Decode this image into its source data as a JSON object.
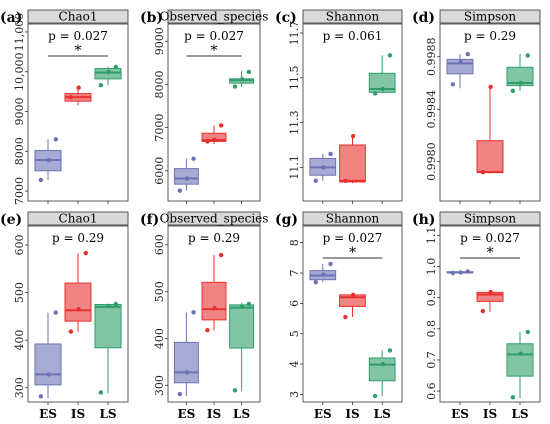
{
  "chart_data": [
    {
      "type": "box",
      "panel": "(a)",
      "strip": "Chao1",
      "p": "p = 0.027",
      "sig": "*",
      "sig_span": [
        "ES",
        "LS"
      ],
      "categories": [
        "ES",
        "IS",
        "LS"
      ],
      "colors": [
        "#6b73b5",
        "#e8312e",
        "#2e9e6b"
      ],
      "ylim": [
        6750,
        11200
      ],
      "yticks": [
        7000,
        8000,
        9000,
        10000,
        11000
      ],
      "ytick_labels": [
        "7000",
        "8000",
        "9000",
        "10,000",
        "11,000"
      ],
      "boxes": [
        {
          "min": 7280,
          "q1": 7510,
          "median": 7780,
          "q3": 8020,
          "max": 8300,
          "points": [
            7280,
            7780,
            8300
          ]
        },
        {
          "min": 9150,
          "q1": 9260,
          "median": 9360,
          "q3": 9450,
          "max": 9600,
          "points": [
            9360,
            9600
          ]
        },
        {
          "min": 9660,
          "q1": 9820,
          "median": 9980,
          "q3": 10080,
          "max": 10130,
          "points": [
            9660,
            9990,
            10120
          ]
        }
      ]
    },
    {
      "type": "box",
      "panel": "(b)",
      "strip": "Observed_species",
      "p": "p = 0.027",
      "sig": "*",
      "sig_span": [
        "ES",
        "LS"
      ],
      "categories": [
        "ES",
        "IS",
        "LS"
      ],
      "colors": [
        "#6b73b5",
        "#e8312e",
        "#2e9e6b"
      ],
      "ylim": [
        5300,
        9400
      ],
      "yticks": [
        6000,
        7000,
        8000,
        9000
      ],
      "ytick_labels": [
        "6000",
        "7000",
        "8000",
        "9000"
      ],
      "boxes": [
        {
          "min": 5540,
          "q1": 5690,
          "median": 5820,
          "q3": 6050,
          "max": 6280,
          "points": [
            5540,
            5820,
            6280
          ]
        },
        {
          "min": 6620,
          "q1": 6680,
          "median": 6710,
          "q3": 6870,
          "max": 7050,
          "points": [
            6680,
            6720,
            7050
          ]
        },
        {
          "min": 7940,
          "q1": 8030,
          "median": 8100,
          "q3": 8130,
          "max": 8310,
          "points": [
            7950,
            8120,
            8290
          ]
        }
      ]
    },
    {
      "type": "box",
      "panel": "(c)",
      "strip": "Shannon",
      "p": "p = 0.061",
      "sig": "",
      "categories": [
        "ES",
        "IS",
        "LS"
      ],
      "colors": [
        "#6b73b5",
        "#e8312e",
        "#2e9e6b"
      ],
      "ylim": [
        10.95,
        11.74
      ],
      "yticks": [
        11.1,
        11.3,
        11.5,
        11.7
      ],
      "ytick_labels": [
        "11.1",
        "11.3",
        "11.5",
        "11.7"
      ],
      "boxes": [
        {
          "min": 11.04,
          "q1": 11.065,
          "median": 11.1,
          "q3": 11.14,
          "max": 11.16,
          "points": [
            11.04,
            11.1,
            11.16
          ]
        },
        {
          "min": 11.03,
          "q1": 11.035,
          "median": 11.04,
          "q3": 11.2,
          "max": 11.24,
          "points": [
            11.04,
            11.24
          ]
        },
        {
          "min": 11.43,
          "q1": 11.435,
          "median": 11.45,
          "q3": 11.52,
          "max": 11.6,
          "points": [
            11.43,
            11.45,
            11.6
          ]
        }
      ]
    },
    {
      "type": "box",
      "panel": "(d)",
      "strip": "Simpson",
      "p": "p = 0.29",
      "sig": "",
      "categories": [
        "ES",
        "IS",
        "LS"
      ],
      "colors": [
        "#6b73b5",
        "#e8312e",
        "#2e9e6b"
      ],
      "ylim": [
        0.9977,
        0.99905
      ],
      "yticks": [
        0.998,
        0.9984,
        0.9988
      ],
      "ytick_labels": [
        "0.9980",
        "0.9984",
        "0.9988"
      ],
      "boxes": [
        {
          "min": 0.99856,
          "q1": 0.99867,
          "median": 0.99875,
          "q3": 0.99878,
          "max": 0.99882,
          "points": [
            0.99859,
            0.99876,
            0.99882
          ]
        },
        {
          "min": 0.99791,
          "q1": 0.99792,
          "median": 0.99792,
          "q3": 0.99816,
          "max": 0.99857,
          "points": [
            0.99792,
            0.99857
          ]
        },
        {
          "min": 0.99854,
          "q1": 0.99858,
          "median": 0.9986,
          "q3": 0.99872,
          "max": 0.99882,
          "points": [
            0.99854,
            0.9986,
            0.99881
          ]
        }
      ]
    },
    {
      "type": "box",
      "panel": "(e)",
      "strip": "Chao1",
      "p": "p = 0.29",
      "sig": "",
      "categories": [
        "ES",
        "IS",
        "LS"
      ],
      "colors": [
        "#6b73b5",
        "#e8312e",
        "#2e9e6b"
      ],
      "ylim": [
        270,
        640
      ],
      "yticks": [
        300,
        400,
        500,
        600
      ],
      "ytick_labels": [
        "300",
        "400",
        "500",
        "600"
      ],
      "boxes": [
        {
          "min": 278,
          "q1": 306,
          "median": 328,
          "q3": 392,
          "max": 458,
          "points": [
            282,
            328,
            458
          ]
        },
        {
          "min": 418,
          "q1": 440,
          "median": 463,
          "q3": 520,
          "max": 583,
          "points": [
            418,
            465,
            583
          ]
        },
        {
          "min": 288,
          "q1": 384,
          "median": 470,
          "q3": 475,
          "max": 476,
          "points": [
            290,
            472,
            476
          ]
        }
      ]
    },
    {
      "type": "box",
      "panel": "(f)",
      "strip": "Observed_species",
      "p": "p = 0.29",
      "sig": "",
      "categories": [
        "ES",
        "IS",
        "LS"
      ],
      "colors": [
        "#6b73b5",
        "#e8312e",
        "#2e9e6b"
      ],
      "ylim": [
        265,
        640
      ],
      "yticks": [
        300,
        400,
        500,
        600
      ],
      "ytick_labels": [
        "300",
        "400",
        "500",
        "600"
      ],
      "boxes": [
        {
          "min": 278,
          "q1": 306,
          "median": 328,
          "q3": 392,
          "max": 456,
          "points": [
            282,
            328,
            456
          ]
        },
        {
          "min": 418,
          "q1": 440,
          "median": 463,
          "q3": 520,
          "max": 578,
          "points": [
            418,
            465,
            578
          ]
        },
        {
          "min": 288,
          "q1": 380,
          "median": 466,
          "q3": 472,
          "max": 476,
          "points": [
            290,
            468,
            474
          ]
        }
      ]
    },
    {
      "type": "box",
      "panel": "(g)",
      "strip": "Shannon",
      "p": "p = 0.027",
      "sig": "*",
      "sig_span": [
        "ES",
        "LS"
      ],
      "categories": [
        "ES",
        "IS",
        "LS"
      ],
      "colors": [
        "#6b73b5",
        "#e8312e",
        "#2e9e6b"
      ],
      "ylim": [
        2.75,
        8.55
      ],
      "yticks": [
        3,
        4,
        5,
        6,
        7,
        8
      ],
      "ytick_labels": [
        "3",
        "4",
        "5",
        "6",
        "7",
        "8"
      ],
      "boxes": [
        {
          "min": 6.7,
          "q1": 6.78,
          "median": 6.92,
          "q3": 7.08,
          "max": 7.3,
          "points": [
            6.7,
            6.95,
            7.3
          ]
        },
        {
          "min": 5.55,
          "q1": 5.9,
          "median": 6.2,
          "q3": 6.28,
          "max": 6.32,
          "points": [
            5.55,
            6.28
          ]
        },
        {
          "min": 2.95,
          "q1": 3.45,
          "median": 3.98,
          "q3": 4.2,
          "max": 4.45,
          "points": [
            2.95,
            4.0,
            4.45
          ]
        }
      ]
    },
    {
      "type": "box",
      "panel": "(h)",
      "strip": "Simpson",
      "p": "p = 0.027",
      "sig": "*",
      "sig_span": [
        "ES",
        "LS"
      ],
      "categories": [
        "ES",
        "IS",
        "LS"
      ],
      "colors": [
        "#6b73b5",
        "#e8312e",
        "#2e9e6b"
      ],
      "ylim": [
        0.565,
        1.13
      ],
      "yticks": [
        0.6,
        0.7,
        0.8,
        0.9,
        1.0,
        1.1
      ],
      "ytick_labels": [
        "0.6",
        "0.7",
        "0.8",
        "0.9",
        "1.0",
        "1.1"
      ],
      "boxes": [
        {
          "min": 0.978,
          "q1": 0.98,
          "median": 0.981,
          "q3": 0.983,
          "max": 0.984,
          "points": [
            0.979,
            0.981,
            0.984
          ]
        },
        {
          "min": 0.855,
          "q1": 0.888,
          "median": 0.91,
          "q3": 0.917,
          "max": 0.922,
          "points": [
            0.857,
            0.918
          ]
        },
        {
          "min": 0.577,
          "q1": 0.648,
          "median": 0.718,
          "q3": 0.752,
          "max": 0.79,
          "points": [
            0.58,
            0.72,
            0.79
          ]
        }
      ]
    }
  ]
}
